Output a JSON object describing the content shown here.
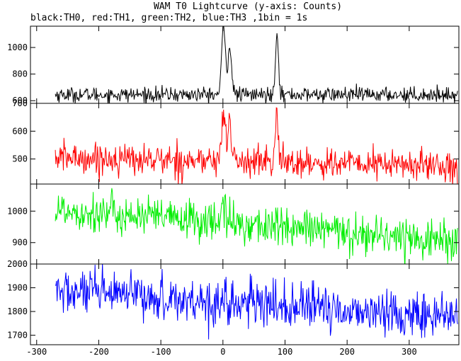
{
  "chart_data": {
    "type": "line",
    "title": "WAM T0 Lightcurve (y-axis: Counts)",
    "subtitle": "black:TH0, red:TH1, green:TH2, blue:TH3 ,1bin = 1s",
    "xlim": [
      -310,
      380
    ],
    "x_ticks": [
      -300,
      -200,
      -100,
      0,
      100,
      200,
      300
    ],
    "x_data_range": [
      -270,
      378
    ],
    "grid": false,
    "panels": [
      {
        "name": "TH0",
        "color": "#000000",
        "ylim": [
          580,
          1160
        ],
        "y_ticks": [
          600,
          800,
          1000
        ],
        "baseline": 645,
        "noise": 28,
        "peaks": [
          {
            "x": 1,
            "height": 505,
            "width": 3
          },
          {
            "x": 11,
            "height": 355,
            "width": 3
          },
          {
            "x": 87,
            "height": 470,
            "width": 2.5
          }
        ]
      },
      {
        "name": "TH1",
        "color": "#ff0000",
        "ylim": [
          410,
          700
        ],
        "y_ticks": [
          500,
          600,
          700
        ],
        "baseline_start": 505,
        "baseline_end": 475,
        "noise": 28,
        "peaks": [
          {
            "x": 1,
            "height": 170,
            "width": 3
          },
          {
            "x": 11,
            "height": 130,
            "width": 3
          },
          {
            "x": 87,
            "height": 160,
            "width": 2.5
          }
        ]
      },
      {
        "name": "TH2",
        "color": "#00ee00",
        "ylim": [
          832,
          1086
        ],
        "y_ticks": [
          900,
          1000
        ],
        "baseline_start": 1005,
        "baseline_end": 905,
        "noise": 32,
        "peaks": [
          {
            "x": 1,
            "height": 55,
            "width": 3
          }
        ]
      },
      {
        "name": "TH3",
        "color": "#0000ff",
        "ylim": [
          1660,
          2000
        ],
        "y_ticks": [
          1700,
          1800,
          1900,
          2000
        ],
        "baseline_start": 1885,
        "baseline_end": 1775,
        "noise": 48,
        "peaks": []
      }
    ]
  }
}
